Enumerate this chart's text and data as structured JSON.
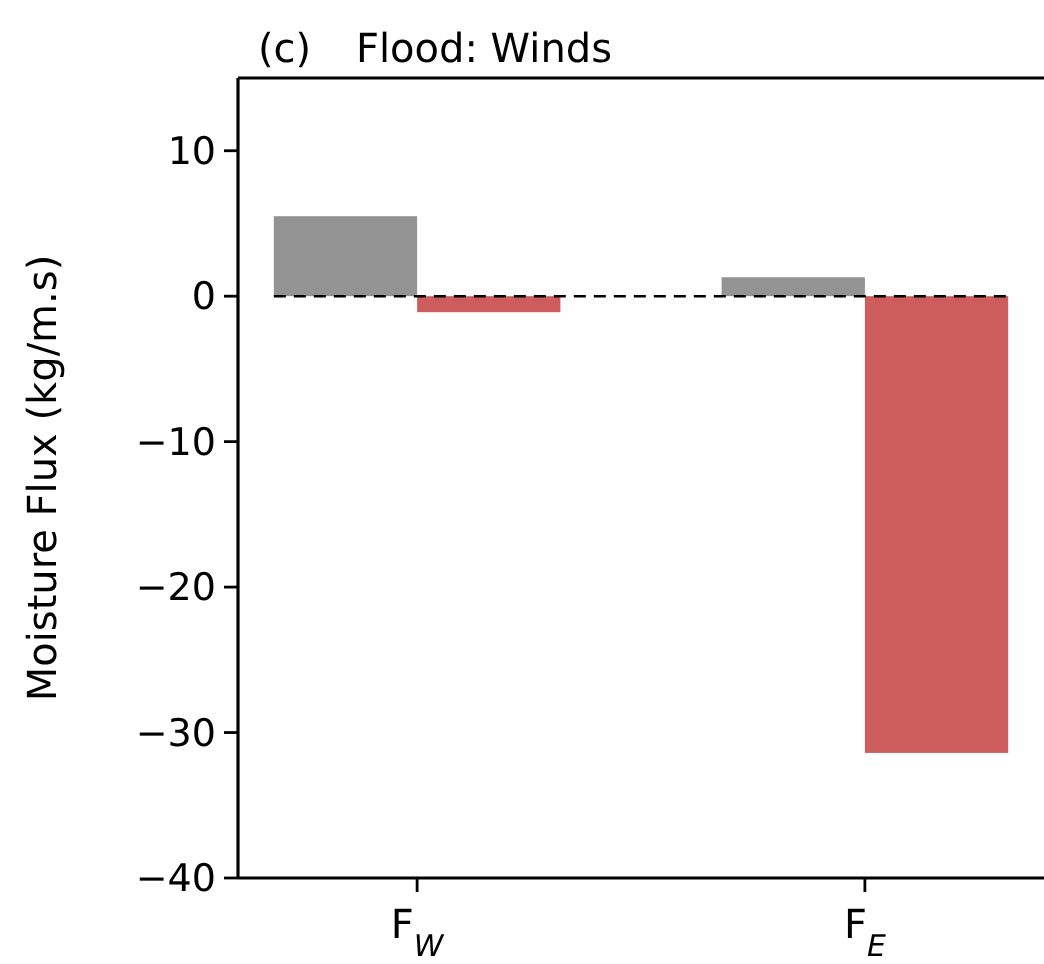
{
  "chart_data": {
    "type": "bar",
    "title": "Flood: Winds",
    "ylabel": "Moisture Flux (kg/m.s)",
    "annotations": [
      "(c)"
    ],
    "categories": [
      "F$_{W}$",
      "F$_{E}$"
    ],
    "series": [
      {
        "color": "#939393",
        "values": [
          5.5,
          1.3
        ]
      },
      {
        "color": "#cd5c5c",
        "values": [
          -1.1,
          -31.4
        ]
      }
    ],
    "ylim": [
      -40,
      15
    ],
    "yticks": [
      {
        "value": -40,
        "label": "−40"
      },
      {
        "value": -30,
        "label": "−30"
      },
      {
        "value": -20,
        "label": "−20"
      },
      {
        "value": -10,
        "label": "−10"
      },
      0,
      10
    ],
    "ref_lines": [
      {
        "axis": "y",
        "value": 0,
        "label": null,
        "color": "#000000",
        "line_style": "dashed"
      }
    ],
    "grid": false
  }
}
